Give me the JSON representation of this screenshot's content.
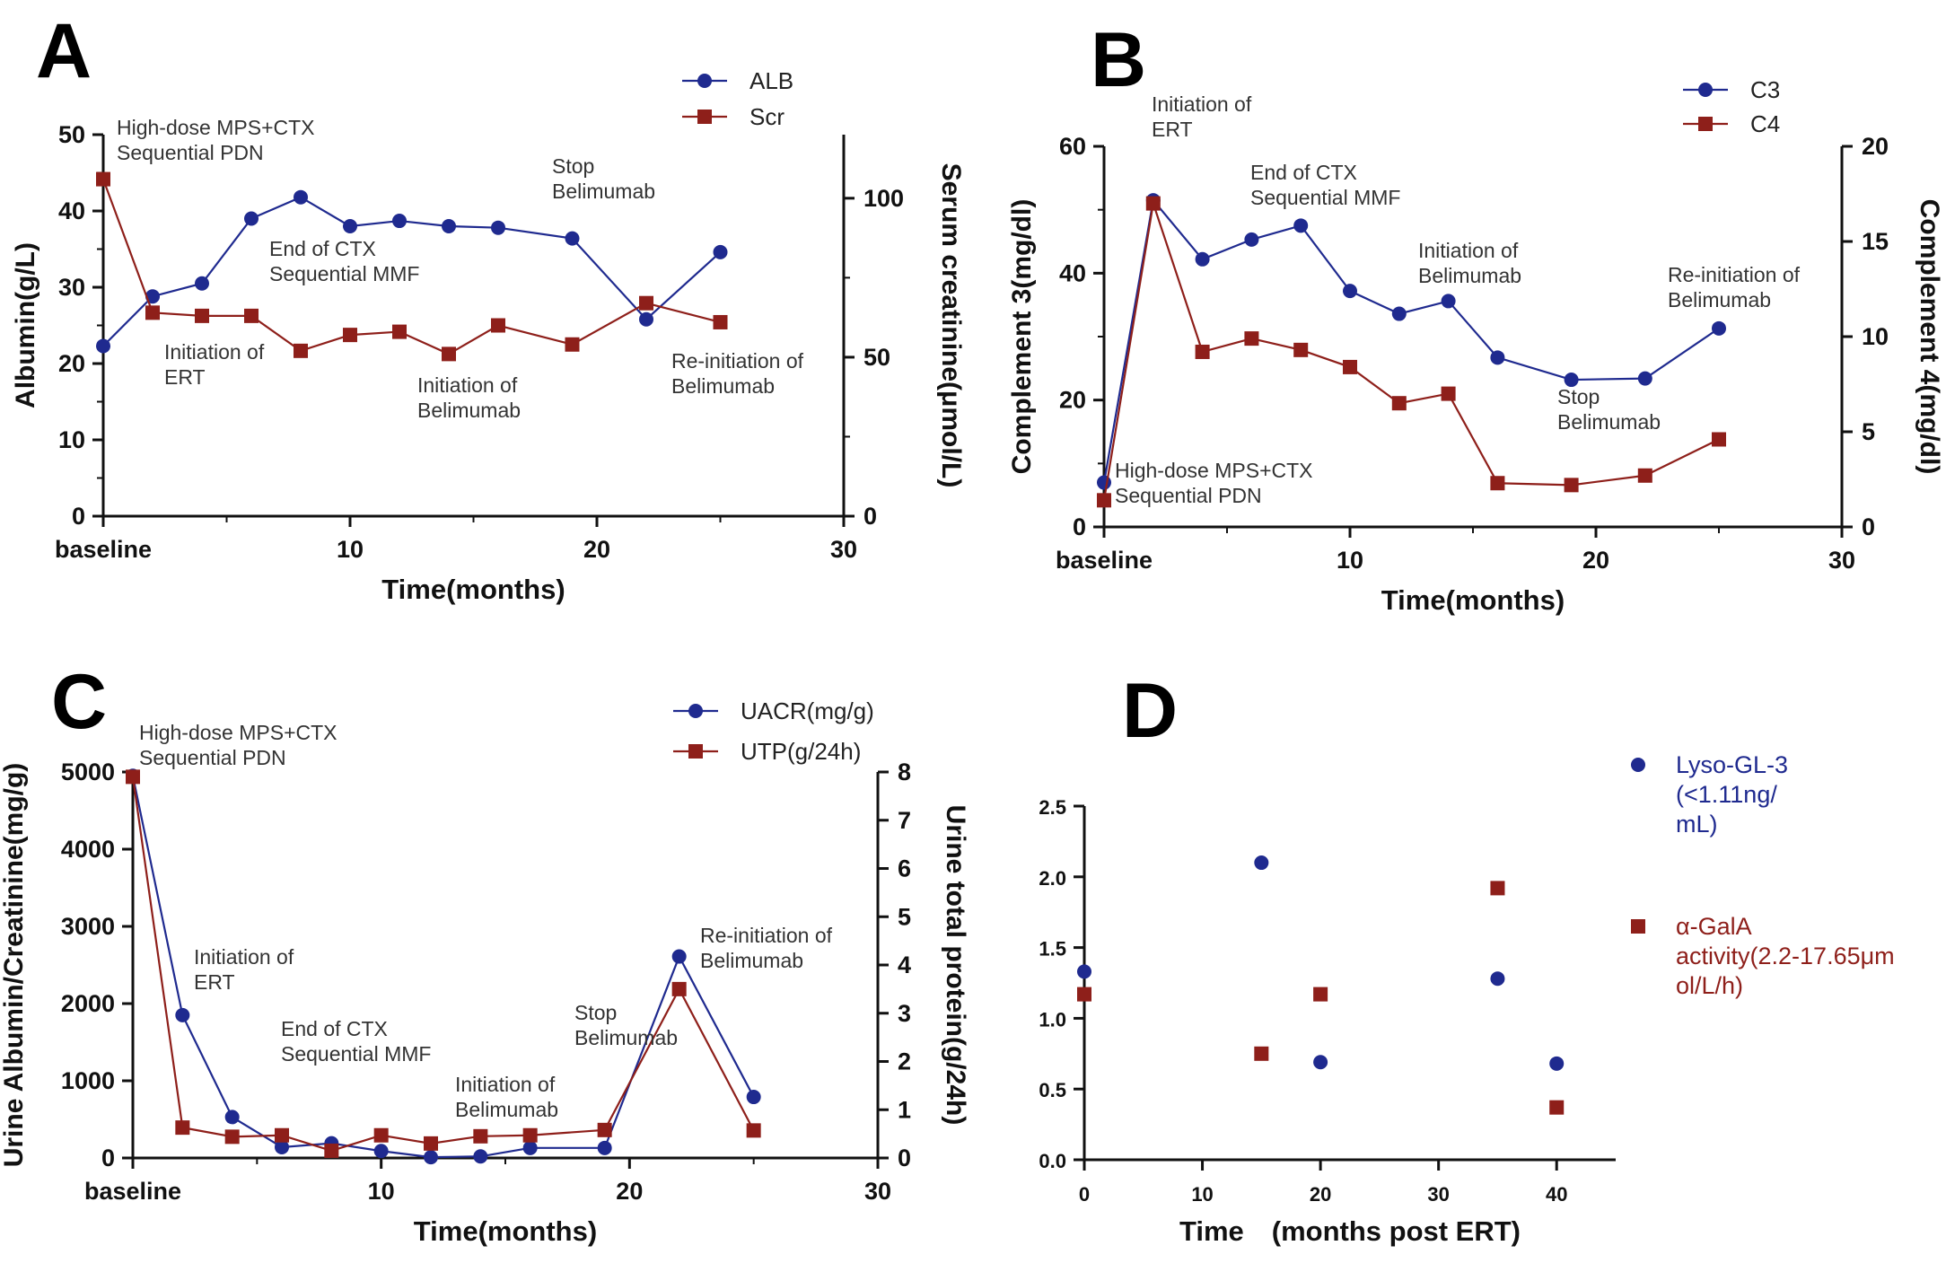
{
  "chart_data": [
    {
      "panel": "A",
      "type": "line",
      "xlabel": "Time(months)",
      "ylabel": "Albumin(g/L)",
      "y2label": "Serum creatinine(μmol/L)",
      "x_ticks": [
        "baseline",
        "10",
        "20",
        "30"
      ],
      "xlim": [
        0,
        30
      ],
      "y_ticks": [
        "0",
        "10",
        "20",
        "30",
        "40",
        "50"
      ],
      "ylim": [
        0,
        50
      ],
      "y2_ticks": [
        "0",
        "50",
        "100"
      ],
      "y2lim": [
        0,
        120
      ],
      "legend": [
        "ALB",
        "Scr"
      ],
      "series": [
        {
          "name": "ALB",
          "axis": "left",
          "color": "#1f2a8f",
          "marker": "circle",
          "x": [
            0,
            2,
            4,
            6,
            8,
            10,
            12,
            14,
            16,
            19,
            22,
            25
          ],
          "values": [
            22.3,
            28.8,
            30.5,
            39.0,
            41.8,
            38.0,
            38.7,
            38.0,
            37.8,
            36.4,
            25.8,
            34.6
          ]
        },
        {
          "name": "Scr",
          "axis": "right",
          "color": "#8e1f1a",
          "marker": "square",
          "x": [
            0,
            2,
            4,
            6,
            8,
            10,
            12,
            14,
            16,
            19,
            22,
            25
          ],
          "values": [
            106,
            64,
            63,
            63,
            52,
            57,
            58,
            51,
            60,
            54,
            67,
            61
          ]
        }
      ],
      "annotations": [
        "High-dose MPS+CTX\nSequential PDN",
        "End of CTX\nSequential MMF",
        "Stop\nBelimumab",
        "Initiation of\nERT",
        "Initiation of\nBelimumab",
        "Re-initiation of\nBelimumab"
      ]
    },
    {
      "panel": "B",
      "type": "line",
      "xlabel": "Time(months)",
      "ylabel": "Complement 3(mg/dl)",
      "y2label": "Complement 4(mg/dl)",
      "x_ticks": [
        "baseline",
        "10",
        "20",
        "30"
      ],
      "xlim": [
        0,
        30
      ],
      "y_ticks": [
        "0",
        "20",
        "40",
        "60"
      ],
      "ylim": [
        0,
        60
      ],
      "y2_ticks": [
        "0",
        "5",
        "10",
        "15",
        "20"
      ],
      "y2lim": [
        0,
        20
      ],
      "legend": [
        "C3",
        "C4"
      ],
      "series": [
        {
          "name": "C3",
          "axis": "left",
          "color": "#1f2a8f",
          "marker": "circle",
          "x": [
            0,
            2,
            4,
            6,
            8,
            10,
            12,
            14,
            16,
            19,
            22,
            25
          ],
          "values": [
            7.0,
            51.5,
            42.2,
            45.3,
            47.5,
            37.2,
            33.6,
            35.6,
            26.7,
            23.2,
            23.4,
            31.3
          ]
        },
        {
          "name": "C4",
          "axis": "right",
          "color": "#8e1f1a",
          "marker": "square",
          "x": [
            0,
            2,
            4,
            6,
            8,
            10,
            12,
            14,
            16,
            19,
            22,
            25
          ],
          "values": [
            1.4,
            17.0,
            9.2,
            9.9,
            9.3,
            8.4,
            6.5,
            7.0,
            2.3,
            2.2,
            2.7,
            4.6
          ]
        }
      ],
      "annotations": [
        "Initiation of\nERT",
        "End of CTX\nSequential MMF",
        "Initiation of\nBelimumab",
        "Re-initiation of\nBelimumab",
        "Stop\nBelimumab",
        "High-dose MPS+CTX\nSequential PDN"
      ]
    },
    {
      "panel": "C",
      "type": "line",
      "xlabel": "Time(months)",
      "ylabel": "Urine Albumin/Creatinine(mg/g)",
      "y2label": "Urine total protein(g/24h)",
      "x_ticks": [
        "baseline",
        "10",
        "20",
        "30"
      ],
      "xlim": [
        0,
        30
      ],
      "y_ticks": [
        "0",
        "1000",
        "2000",
        "3000",
        "4000",
        "5000"
      ],
      "ylim": [
        0,
        5000
      ],
      "y2_ticks": [
        "0",
        "1",
        "2",
        "3",
        "4",
        "5",
        "6",
        "7",
        "8"
      ],
      "y2lim": [
        0,
        8
      ],
      "legend": [
        "UACR(mg/g)",
        "UTP(g/24h)"
      ],
      "series": [
        {
          "name": "UACR(mg/g)",
          "axis": "left",
          "color": "#1f2a8f",
          "marker": "circle",
          "x": [
            0,
            2,
            4,
            6,
            8,
            10,
            12,
            14,
            16,
            19,
            22,
            25
          ],
          "values": [
            4950,
            1850,
            530,
            140,
            190,
            90,
            10,
            20,
            130,
            130,
            2610,
            790
          ]
        },
        {
          "name": "UTP(g/24h)",
          "axis": "right",
          "color": "#8e1f1a",
          "marker": "square",
          "x": [
            0,
            2,
            4,
            6,
            8,
            10,
            12,
            14,
            16,
            19,
            22,
            25
          ],
          "values": [
            7.9,
            0.63,
            0.44,
            0.47,
            0.15,
            0.47,
            0.3,
            0.45,
            0.47,
            0.58,
            3.5,
            0.57
          ]
        }
      ],
      "annotations": [
        "High-dose MPS+CTX\nSequential PDN",
        "Initiation of\nERT",
        "End of CTX\nSequential MMF",
        "Initiation of\nBelimumab",
        "Stop\nBelimumab",
        "Re-initiation of\nBelimumab"
      ]
    },
    {
      "panel": "D",
      "type": "scatter",
      "xlabel": "Time　(months post ERT)",
      "ylabel": "",
      "x_ticks": [
        "0",
        "10",
        "20",
        "30",
        "40"
      ],
      "xlim": [
        0,
        45
      ],
      "y_ticks": [
        "0.0",
        "0.5",
        "1.0",
        "1.5",
        "2.0",
        "2.5"
      ],
      "ylim": [
        0,
        2.5
      ],
      "legend": [
        "Lyso-GL-3\n(<1.11ng/\nmL)",
        "α-GalA\nactivity(2.2-17.65μm\nol/L/h)"
      ],
      "series": [
        {
          "name": "Lyso-GL-3 (<1.11ng/mL)",
          "color": "#1f2a8f",
          "marker": "circle",
          "x": [
            0,
            15,
            20,
            35,
            40
          ],
          "values": [
            1.33,
            2.1,
            0.69,
            1.28,
            0.68
          ]
        },
        {
          "name": "α-GalA activity(2.2-17.65μmol/L/h)",
          "color": "#8e1f1a",
          "marker": "square",
          "x": [
            0,
            15,
            20,
            35,
            40
          ],
          "values": [
            1.17,
            0.75,
            1.17,
            1.92,
            0.37
          ]
        }
      ]
    }
  ]
}
